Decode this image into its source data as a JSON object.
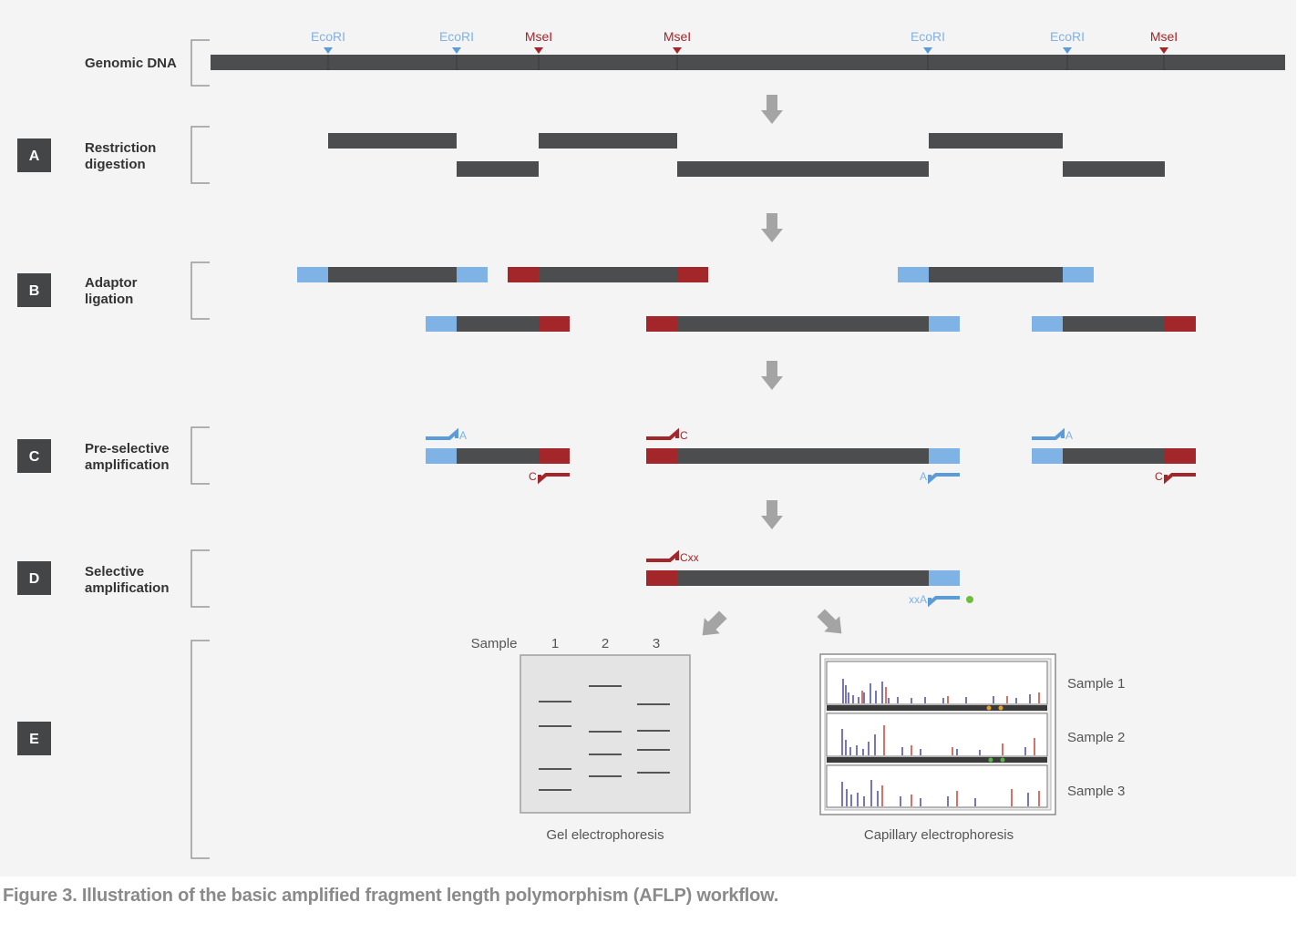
{
  "genomic_label": "Genomic DNA",
  "sites": [
    {
      "label": "EcoRI",
      "type": "ecori"
    },
    {
      "label": "EcoRI",
      "type": "ecori"
    },
    {
      "label": "MseI",
      "type": "msei"
    },
    {
      "label": "MseI",
      "type": "msei"
    },
    {
      "label": "EcoRI",
      "type": "ecori"
    },
    {
      "label": "EcoRI",
      "type": "ecori"
    },
    {
      "label": "MseI",
      "type": "msei"
    }
  ],
  "steps": [
    {
      "letter": "A",
      "label_line1": "Restriction",
      "label_line2": "digestion"
    },
    {
      "letter": "B",
      "label_line1": "Adaptor",
      "label_line2": "ligation"
    },
    {
      "letter": "C",
      "label_line1": "Pre-selective",
      "label_line2": "amplification"
    },
    {
      "letter": "D",
      "label_line1": "Selective",
      "label_line2": "amplification"
    },
    {
      "letter": "E",
      "label_line1": "",
      "label_line2": ""
    }
  ],
  "primers": {
    "pre_a": "A",
    "pre_c": "C",
    "sel_cxx": "Cxx",
    "sel_xxa": "xxA"
  },
  "gel": {
    "sample_header": "Sample",
    "lanes": [
      "1",
      "2",
      "3"
    ],
    "label": "Gel electrophoresis"
  },
  "capillary": {
    "samples": [
      "Sample 1",
      "Sample 2",
      "Sample 3"
    ],
    "label": "Capillary electrophoresis"
  },
  "caption": "Figure 3. Illustration of the basic amplified fragment length polymorphism (AFLP) workflow.",
  "colors": {
    "dna": "#4c4d4f",
    "ecori": "#7fb2e5",
    "msei": "#a3262a",
    "arrow": "#a4a4a4",
    "badge": "#434547",
    "background": "#f4f4f4"
  }
}
